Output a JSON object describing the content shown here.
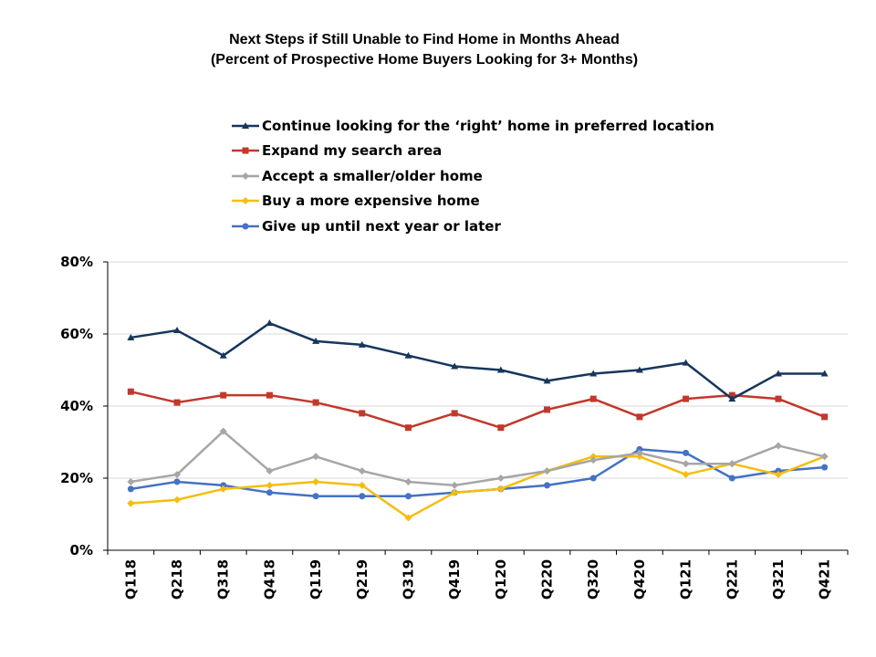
{
  "chart_data": {
    "type": "line",
    "title_line1": "Next Steps if Still Unable to Find Home in Months Ahead",
    "title_line2": "(Percent of Prospective Home Buyers Looking for 3+ Months)",
    "categories": [
      "Q118",
      "Q218",
      "Q318",
      "Q418",
      "Q119",
      "Q219",
      "Q319",
      "Q419",
      "Q120",
      "Q220",
      "Q320",
      "Q420",
      "Q121",
      "Q221",
      "Q321",
      "Q421"
    ],
    "y_ticks": [
      "0%",
      "20%",
      "40%",
      "60%",
      "80%"
    ],
    "ylim": [
      0,
      80
    ],
    "grid": true,
    "legend_position": "top",
    "series": [
      {
        "name": "Continue looking for the ‘right’ home in preferred location",
        "color": "#16365C",
        "marker": "triangle",
        "values": [
          59,
          61,
          54,
          63,
          58,
          57,
          54,
          51,
          50,
          47,
          49,
          50,
          52,
          42,
          49,
          49
        ]
      },
      {
        "name": "Expand my search area",
        "color": "#C0392B",
        "marker": "square",
        "values": [
          44,
          41,
          43,
          43,
          41,
          38,
          34,
          38,
          34,
          39,
          42,
          37,
          42,
          43,
          42,
          37
        ]
      },
      {
        "name": "Accept a smaller/older home",
        "color": "#A6A6A6",
        "marker": "diamond",
        "values": [
          19,
          21,
          33,
          22,
          26,
          22,
          19,
          18,
          20,
          22,
          25,
          27,
          24,
          24,
          29,
          26
        ]
      },
      {
        "name": "Buy a more expensive home",
        "color": "#F5BD0E",
        "marker": "diamond",
        "values": [
          13,
          14,
          17,
          18,
          19,
          18,
          9,
          16,
          17,
          22,
          26,
          26,
          21,
          24,
          21,
          26
        ]
      },
      {
        "name": "Give up until next year or later",
        "color": "#4472C4",
        "marker": "circle",
        "values": [
          17,
          19,
          18,
          16,
          15,
          15,
          15,
          16,
          17,
          18,
          20,
          28,
          27,
          20,
          22,
          23
        ]
      }
    ]
  }
}
